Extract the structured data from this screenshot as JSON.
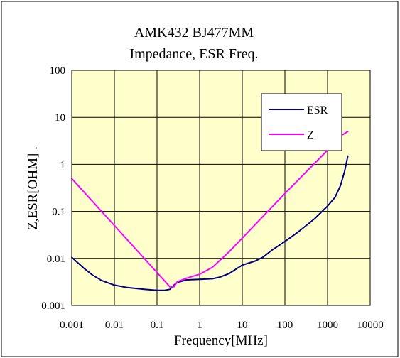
{
  "chart_data": {
    "type": "line",
    "title": "AMK432 BJ477MM",
    "subtitle": "Impedance, ESR Freq.",
    "xlabel": "Frequency[MHz]",
    "ylabel": "Z,ESR[OHM] .",
    "xscale": "log",
    "yscale": "log",
    "xlim": [
      0.001,
      10000
    ],
    "ylim": [
      0.001,
      100
    ],
    "xticks": [
      "0.001",
      "0.01",
      "0.1",
      "1",
      "10",
      "100",
      "1000",
      "10000"
    ],
    "yticks": [
      "0.001",
      "0.01",
      "0.1",
      "1",
      "10",
      "100"
    ],
    "grid": true,
    "plot_background": "#ffffcc",
    "legend_position": "top-right",
    "series": [
      {
        "name": "ESR",
        "color": "#000080",
        "x": [
          0.001,
          0.002,
          0.003,
          0.005,
          0.01,
          0.02,
          0.05,
          0.1,
          0.15,
          0.2,
          0.25,
          0.3,
          0.5,
          1,
          2,
          3,
          5,
          10,
          20,
          30,
          50,
          100,
          200,
          500,
          1000,
          1500,
          2000,
          2500,
          3000
        ],
        "y": [
          0.0105,
          0.006,
          0.0045,
          0.0034,
          0.0027,
          0.0024,
          0.0022,
          0.0021,
          0.0021,
          0.0022,
          0.0027,
          0.0031,
          0.0035,
          0.0036,
          0.0037,
          0.004,
          0.0048,
          0.0072,
          0.0088,
          0.0105,
          0.015,
          0.023,
          0.036,
          0.07,
          0.13,
          0.2,
          0.35,
          0.7,
          1.5
        ]
      },
      {
        "name": "Z",
        "color": "#ff00ff",
        "x": [
          0.001,
          0.01,
          0.1,
          0.2,
          0.25,
          0.3,
          0.5,
          1,
          2,
          5,
          10,
          100,
          1000,
          2000,
          3000
        ],
        "y": [
          0.5,
          0.05,
          0.005,
          0.0025,
          0.0025,
          0.0032,
          0.0038,
          0.0046,
          0.0065,
          0.014,
          0.027,
          0.24,
          2.0,
          4.0,
          5.0
        ]
      }
    ]
  }
}
